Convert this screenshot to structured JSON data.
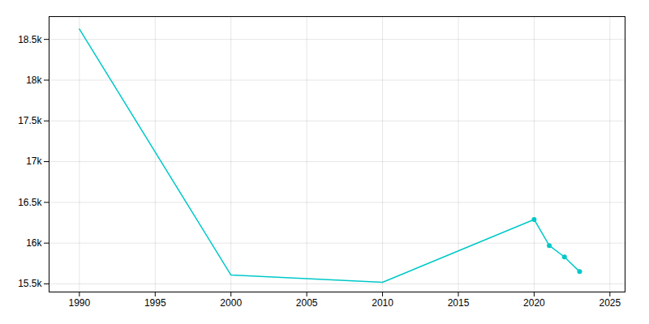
{
  "chart_data": {
    "type": "line",
    "x": [
      1990,
      2000,
      2010,
      2020,
      2021,
      2022,
      2023
    ],
    "values": [
      18628,
      15608,
      15519,
      16290,
      15970,
      15830,
      15650
    ],
    "color": "#00c8c8",
    "marker": "o",
    "marker_x": [
      2020,
      2021,
      2022,
      2023
    ],
    "xlim": [
      1988,
      2026
    ],
    "xticks": [
      1990,
      1995,
      2000,
      2005,
      2010,
      2015,
      2020,
      2025
    ],
    "ylim": [
      15400,
      18780
    ],
    "yticks": [
      {
        "value": 15500,
        "label": "15.5k"
      },
      {
        "value": 16000,
        "label": "16k"
      },
      {
        "value": 16500,
        "label": "16.5k"
      },
      {
        "value": 17000,
        "label": "17k"
      },
      {
        "value": 17500,
        "label": "17.5k"
      },
      {
        "value": 18000,
        "label": "18k"
      },
      {
        "value": 18500,
        "label": "18.5k"
      }
    ],
    "grid": true
  }
}
